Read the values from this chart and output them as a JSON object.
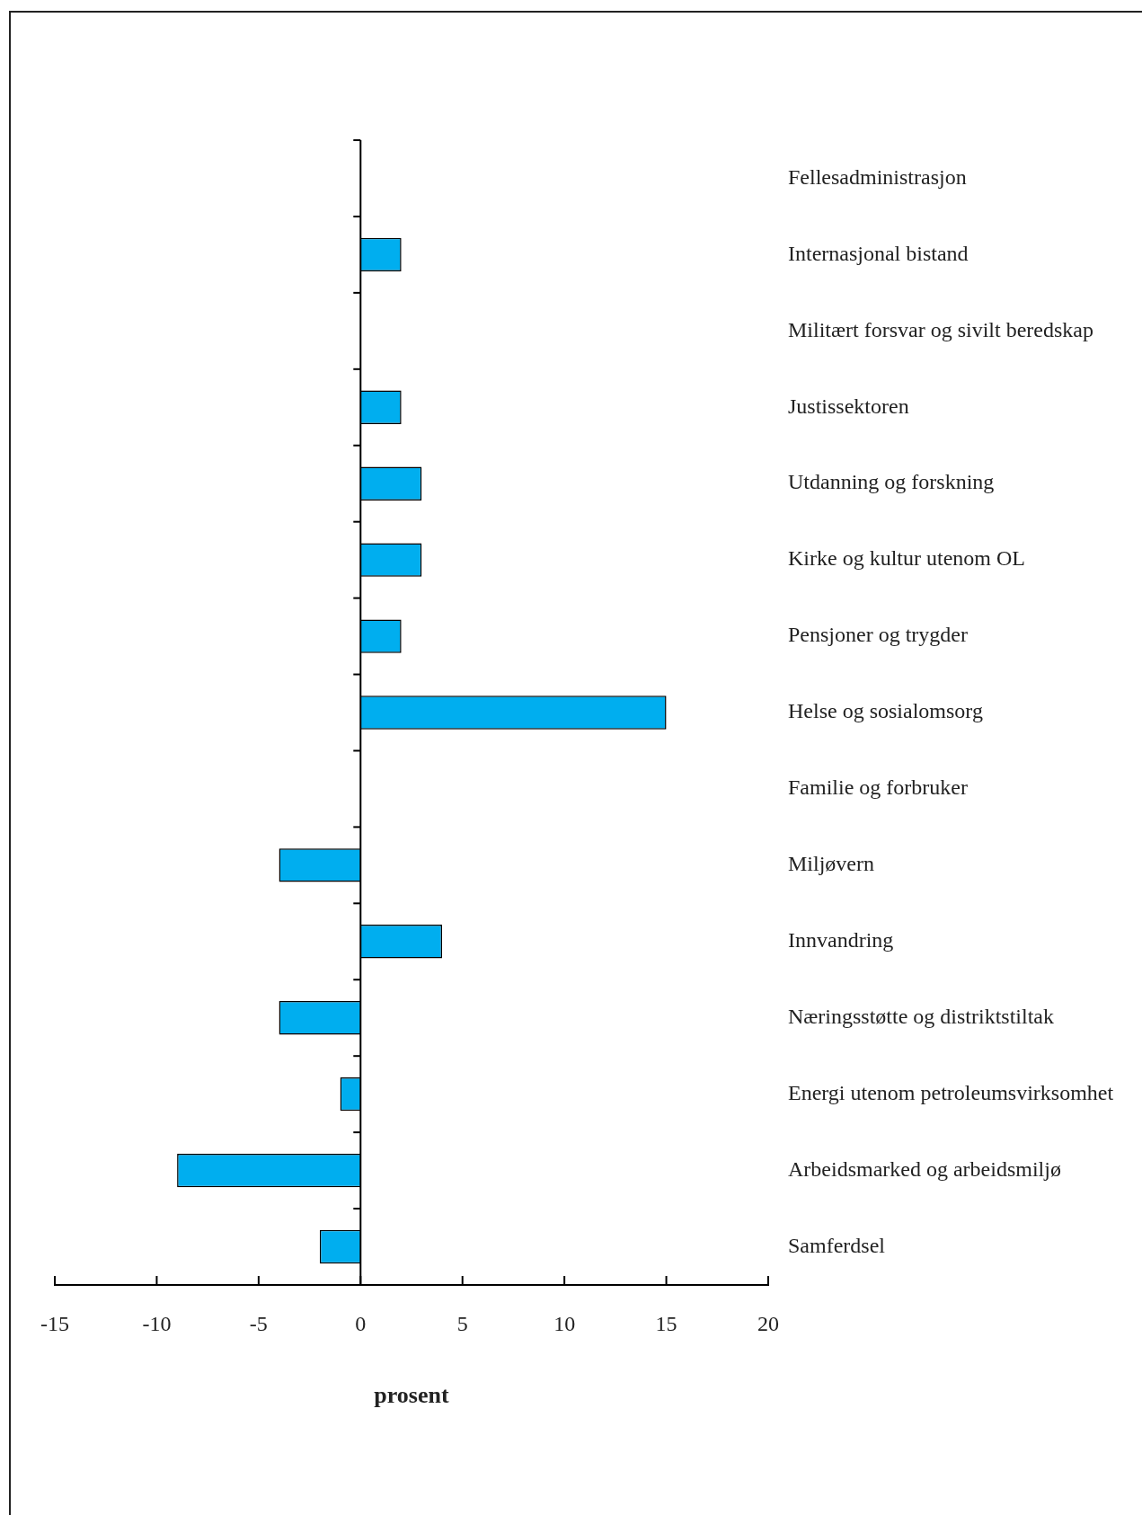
{
  "chart_data": {
    "type": "bar",
    "orientation": "horizontal",
    "xlabel": "prosent",
    "categories": [
      "Fellesadministrasjon",
      "Internasjonal bistand",
      "Militært forsvar og sivilt beredskap",
      "Justissektoren",
      "Utdanning og forskning",
      "Kirke og kultur utenom OL",
      "Pensjoner og trygder",
      "Helse og sosialomsorg",
      "Familie og forbruker",
      "Miljøvern",
      "Innvandring",
      "Næringsstøtte og distriktstiltak",
      "Energi utenom petroleumsvirksomhet",
      "Arbeidsmarked og arbeidsmiljø",
      "Samferdsel"
    ],
    "values": [
      0,
      2,
      0,
      2,
      3,
      3,
      2,
      15,
      0,
      -4,
      4,
      -4,
      -1,
      -9,
      -2
    ],
    "color": "#00aeef",
    "xlim": [
      -15,
      20
    ],
    "xticks": [
      -15,
      -10,
      -5,
      0,
      5,
      10,
      15,
      20
    ],
    "legend": false
  }
}
